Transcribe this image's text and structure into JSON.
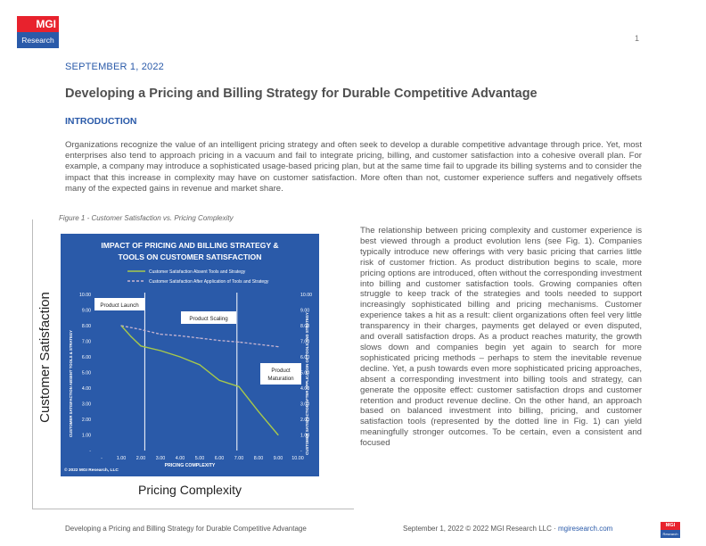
{
  "header": {
    "logo_top": "MGI",
    "logo_bottom": "Research",
    "page_number": "1"
  },
  "date": "SEPTEMBER 1, 2022",
  "title": "Developing a Pricing and Billing Strategy for Durable Competitive Advantage",
  "section": "INTRODUCTION",
  "intro": "Organizations recognize the value of an intelligent pricing strategy and often seek to develop a durable competitive advantage through price.  Yet, most enterprises also tend to approach pricing in a vacuum and fail to integrate pricing, billing, and customer satisfaction into a cohesive overall plan. For example, a company may introduce a sophisticated usage-based pricing plan, but at the same time fail to upgrade its billing systems and to consider the impact that this increase in complexity may have on customer satisfaction. More often than not, customer experience suffers and negatively offsets many of the expected gains in revenue and market share.",
  "figure": {
    "caption": "Figure 1 - Customer Satisfaction vs. Pricing Complexity",
    "outer_ylabel": "Customer Satisfaction",
    "outer_xlabel": "Pricing Complexity"
  },
  "chart_data": {
    "type": "line",
    "title": "IMPACT OF PRICING AND BILLING STRATEGY & TOOLS ON CUSTOMER SATISFACTION",
    "xlabel": "PRICING COMPLEXITY",
    "ylabel_left": "CUSTOMER SATISFACTION ABSENT TOOLS & STRATEGY",
    "ylabel_right": "CUSTOMER SATISFACTION AFTER APPLICATION OF TOOLS AND STRATEGY",
    "copyright": "© 2022 MGI Research, LLC",
    "xlim": [
      0,
      10
    ],
    "ylim": [
      0,
      10
    ],
    "x_ticks": [
      "-",
      "1.00",
      "2.00",
      "3.00",
      "4.00",
      "5.00",
      "6.00",
      "7.00",
      "8.00",
      "9.00",
      "10.00"
    ],
    "y_ticks": [
      "-",
      "1.00",
      "2.00",
      "3.00",
      "4.00",
      "5.00",
      "6.00",
      "7.00",
      "8.00",
      "9.00",
      "10.00"
    ],
    "legend_placement": "top",
    "grid": false,
    "background": "#2a5aa9",
    "series": [
      {
        "name": "Customer Satisfaction Absent Tools and Strategy",
        "color": "#a8c94a",
        "style": "solid",
        "x": [
          1,
          1.5,
          2,
          3,
          4,
          5,
          6,
          7,
          8,
          9
        ],
        "y": [
          8.0,
          7.3,
          6.7,
          6.4,
          6.0,
          5.5,
          4.5,
          4.1,
          2.5,
          1.0
        ]
      },
      {
        "name": "Customer Satisfaction After Application of Tools and Strategy",
        "color": "#c9b6d1",
        "style": "dashed",
        "x": [
          1,
          2,
          3,
          4,
          5,
          6,
          7,
          8,
          9
        ],
        "y": [
          8.0,
          7.75,
          7.45,
          7.35,
          7.2,
          7.05,
          6.95,
          6.8,
          6.65
        ]
      }
    ],
    "phase_lines_x": [
      2.2,
      6.9
    ],
    "phase_labels": [
      "Product Launch",
      "Product Scaling",
      "Product Maturation"
    ]
  },
  "body_text": "The relationship between pricing complexity and customer experience is best viewed through a product evolution lens (see Fig. 1). Companies typically introduce new offerings with very basic pricing that carries little risk of customer friction. As product distribution begins to scale, more pricing options are introduced, often without the corresponding investment into billing and customer satisfaction tools. Growing companies often struggle to keep track of the strategies and tools needed to support increasingly sophisticated billing and pricing mechanisms. Customer experience takes a hit as a result: client organizations often feel very little transparency in their charges, payments get delayed or even disputed, and overall satisfaction drops. As a product reaches maturity, the growth slows down and companies begin yet again to search for more sophisticated pricing methods – perhaps to stem the inevitable revenue decline. Yet, a push towards even more sophisticated pricing approaches, absent a corresponding investment into billing tools and strategy, can generate the opposite effect: customer satisfaction drops and customer retention and product revenue decline. On the other hand, an approach based on balanced investment into billing, pricing, and customer satisfaction tools (represented by the dotted line in Fig. 1) can yield meaningfully stronger outcomes. To be certain, even a consistent and focused",
  "footer": {
    "left": "Developing a Pricing and Billing Strategy for Durable Competitive Advantage",
    "right_prefix": "September 1, 2022 © 2022 MGI Research LLC · ",
    "right_link": "mgiresearch.com"
  }
}
